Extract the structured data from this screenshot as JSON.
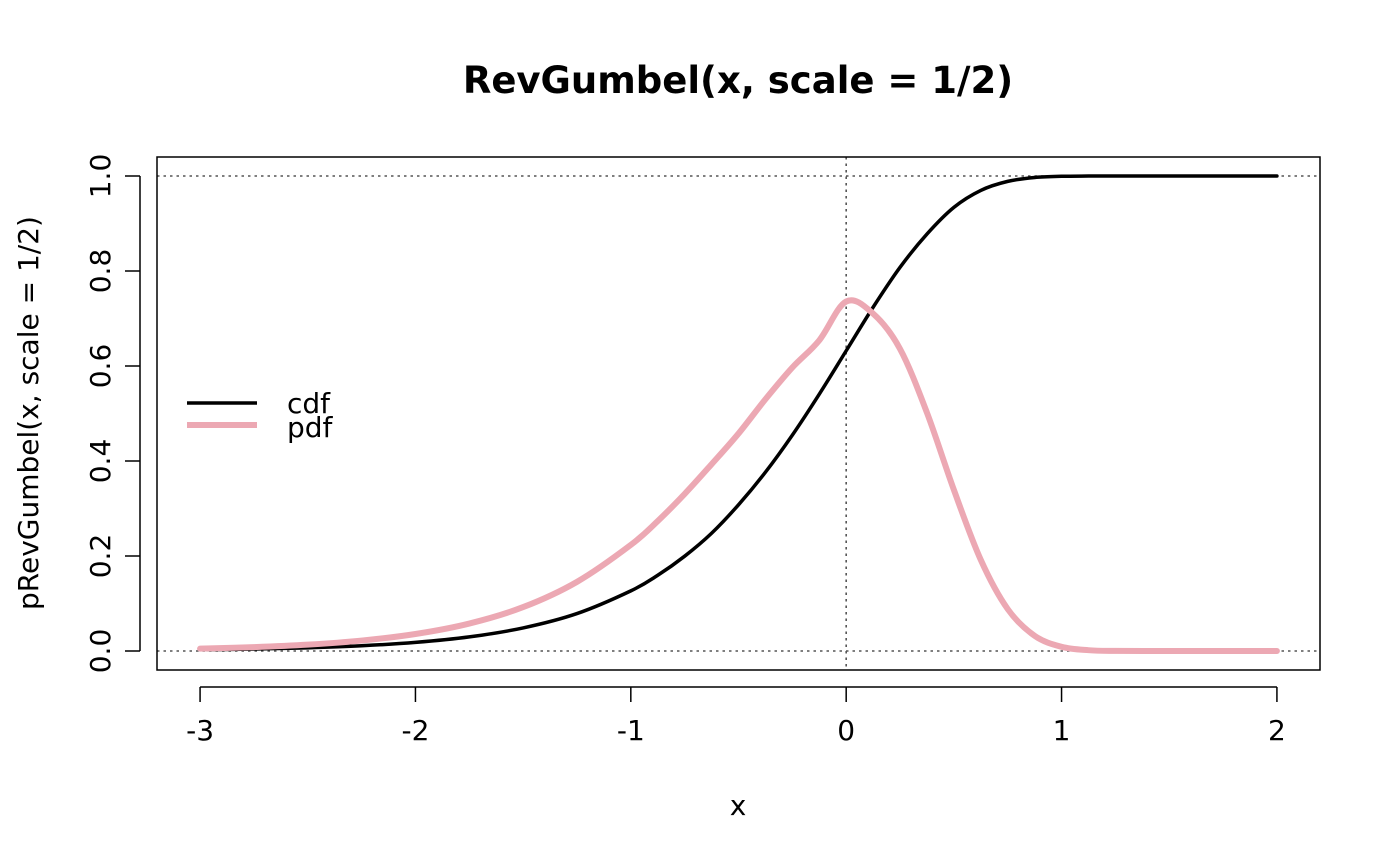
{
  "chart_data": {
    "type": "line",
    "title": "RevGumbel(x, scale = 1/2)",
    "xlabel": "x",
    "ylabel": "pRevGumbel(x, scale = 1/2)",
    "xlim": [
      -3.2,
      2.2
    ],
    "ylim": [
      -0.04,
      1.04
    ],
    "x_ticks": [
      -3,
      -2,
      -1,
      0,
      1,
      2
    ],
    "x_tick_labels": [
      "-3",
      "-2",
      "-1",
      "0",
      "1",
      "2"
    ],
    "y_ticks": [
      0.0,
      0.2,
      0.4,
      0.6,
      0.8,
      1.0
    ],
    "y_tick_labels": [
      "0.0",
      "0.2",
      "0.4",
      "0.6",
      "0.8",
      "1.0"
    ],
    "reference_lines": {
      "horizontal": [
        0,
        1
      ],
      "vertical": [
        0
      ],
      "style": "dotted"
    },
    "grid": false,
    "legend": {
      "position": "left",
      "entries": [
        "cdf",
        "pdf"
      ]
    },
    "series": [
      {
        "name": "cdf",
        "color": "#000000",
        "x": [
          -3.0,
          -2.75,
          -2.5,
          -2.25,
          -2.0,
          -1.75,
          -1.5,
          -1.25,
          -1.0,
          -0.875,
          -0.75,
          -0.625,
          -0.5,
          -0.375,
          -0.25,
          -0.125,
          0.0,
          0.125,
          0.25,
          0.375,
          0.5,
          0.625,
          0.75,
          0.875,
          1.0,
          1.125,
          1.25,
          1.5,
          1.75,
          2.0
        ],
        "y": [
          0.0025,
          0.0041,
          0.0067,
          0.011,
          0.0181,
          0.0297,
          0.0486,
          0.0788,
          0.1266,
          0.1594,
          0.1996,
          0.2479,
          0.3078,
          0.3764,
          0.4545,
          0.5407,
          0.6321,
          0.7237,
          0.8077,
          0.8778,
          0.934,
          0.9697,
          0.9887,
          0.9969,
          0.9994,
          0.9999,
          1.0,
          1.0,
          1.0,
          1.0
        ]
      },
      {
        "name": "pdf",
        "color": "#eca8b3",
        "x": [
          -3.0,
          -2.75,
          -2.5,
          -2.25,
          -2.0,
          -1.75,
          -1.5,
          -1.25,
          -1.0,
          -0.875,
          -0.75,
          -0.625,
          -0.5,
          -0.375,
          -0.25,
          -0.125,
          0.0,
          0.125,
          0.25,
          0.375,
          0.5,
          0.625,
          0.75,
          0.875,
          1.0,
          1.125,
          1.25,
          1.5,
          1.75,
          2.0
        ],
        "y": [
          0.005,
          0.0082,
          0.0134,
          0.022,
          0.0358,
          0.0578,
          0.0924,
          0.1456,
          0.2234,
          0.2736,
          0.3307,
          0.3932,
          0.4578,
          0.53,
          0.5968,
          0.654,
          0.7358,
          0.7103,
          0.636,
          0.5017,
          0.3393,
          0.1918,
          0.0883,
          0.032,
          0.0088,
          0.0017,
          0.0002,
          0.0,
          0.0,
          0.0
        ]
      }
    ]
  }
}
